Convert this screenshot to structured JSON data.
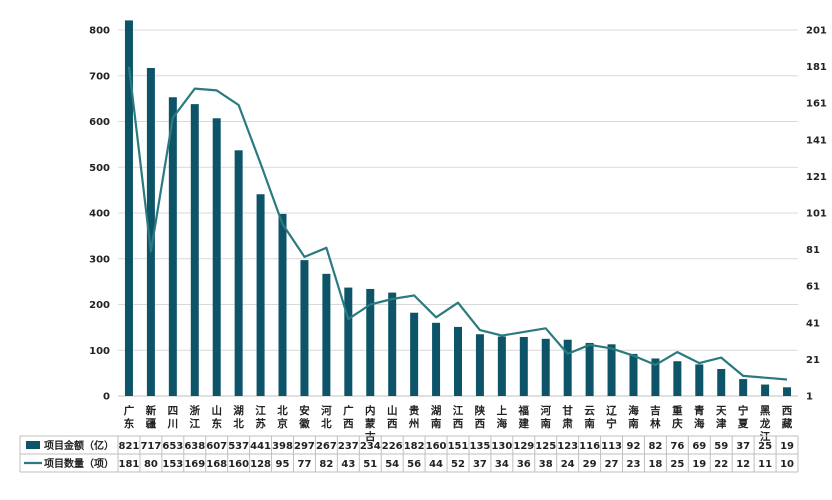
{
  "chart_data": {
    "type": "bar+line",
    "categories": [
      "广东",
      "新疆",
      "四川",
      "浙江",
      "山东",
      "湖北",
      "江苏",
      "北京",
      "安徽",
      "河北",
      "广西",
      "内蒙古",
      "山西",
      "贵州",
      "湖南",
      "江西",
      "陕西",
      "上海",
      "福建",
      "河南",
      "甘肃",
      "云南",
      "辽宁",
      "海南",
      "吉林",
      "重庆",
      "青海",
      "天津",
      "宁夏",
      "黑龙江",
      "西藏"
    ],
    "category_lines": [
      [
        "广",
        "东"
      ],
      [
        "新",
        "疆"
      ],
      [
        "四",
        "川"
      ],
      [
        "浙",
        "江"
      ],
      [
        "山",
        "东"
      ],
      [
        "湖",
        "北"
      ],
      [
        "江",
        "苏"
      ],
      [
        "北",
        "京"
      ],
      [
        "安",
        "徽"
      ],
      [
        "河",
        "北"
      ],
      [
        "广",
        "西"
      ],
      [
        "内",
        "蒙",
        "古"
      ],
      [
        "山",
        "西"
      ],
      [
        "贵",
        "州"
      ],
      [
        "湖",
        "南"
      ],
      [
        "江",
        "西"
      ],
      [
        "陕",
        "西"
      ],
      [
        "上",
        "海"
      ],
      [
        "福",
        "建"
      ],
      [
        "河",
        "南"
      ],
      [
        "甘",
        "肃"
      ],
      [
        "云",
        "南"
      ],
      [
        "辽",
        "宁"
      ],
      [
        "海",
        "南"
      ],
      [
        "吉",
        "林"
      ],
      [
        "重",
        "庆"
      ],
      [
        "青",
        "海"
      ],
      [
        "天",
        "津"
      ],
      [
        "宁",
        "夏"
      ],
      [
        "黑",
        "龙",
        "江"
      ],
      [
        "西",
        "藏"
      ]
    ],
    "series": [
      {
        "name": "项目金额（亿）",
        "type": "bar",
        "axis": "left",
        "color": "#0d5468",
        "values": [
          821,
          717,
          653,
          638,
          607,
          537,
          441,
          398,
          297,
          267,
          237,
          234,
          226,
          182,
          160,
          151,
          135,
          130,
          129,
          125,
          123,
          116,
          113,
          92,
          82,
          76,
          69,
          59,
          37,
          25,
          19
        ]
      },
      {
        "name": "项目数量（项）",
        "type": "line",
        "axis": "right",
        "color": "#2a7a80",
        "values": [
          181,
          80,
          153,
          169,
          168,
          160,
          128,
          95,
          77,
          82,
          43,
          51,
          54,
          56,
          44,
          52,
          37,
          34,
          36,
          38,
          24,
          29,
          27,
          23,
          18,
          25,
          19,
          22,
          12,
          11,
          10
        ]
      }
    ],
    "left_axis": {
      "min": 0,
      "max": 800,
      "ticks": [
        0,
        100,
        200,
        300,
        400,
        500,
        600,
        700,
        800
      ]
    },
    "right_axis": {
      "min": 1,
      "max": 201,
      "ticks": [
        1,
        21,
        41,
        61,
        81,
        101,
        121,
        141,
        161,
        181,
        201
      ]
    },
    "grid": true,
    "legend": "bottom table"
  }
}
